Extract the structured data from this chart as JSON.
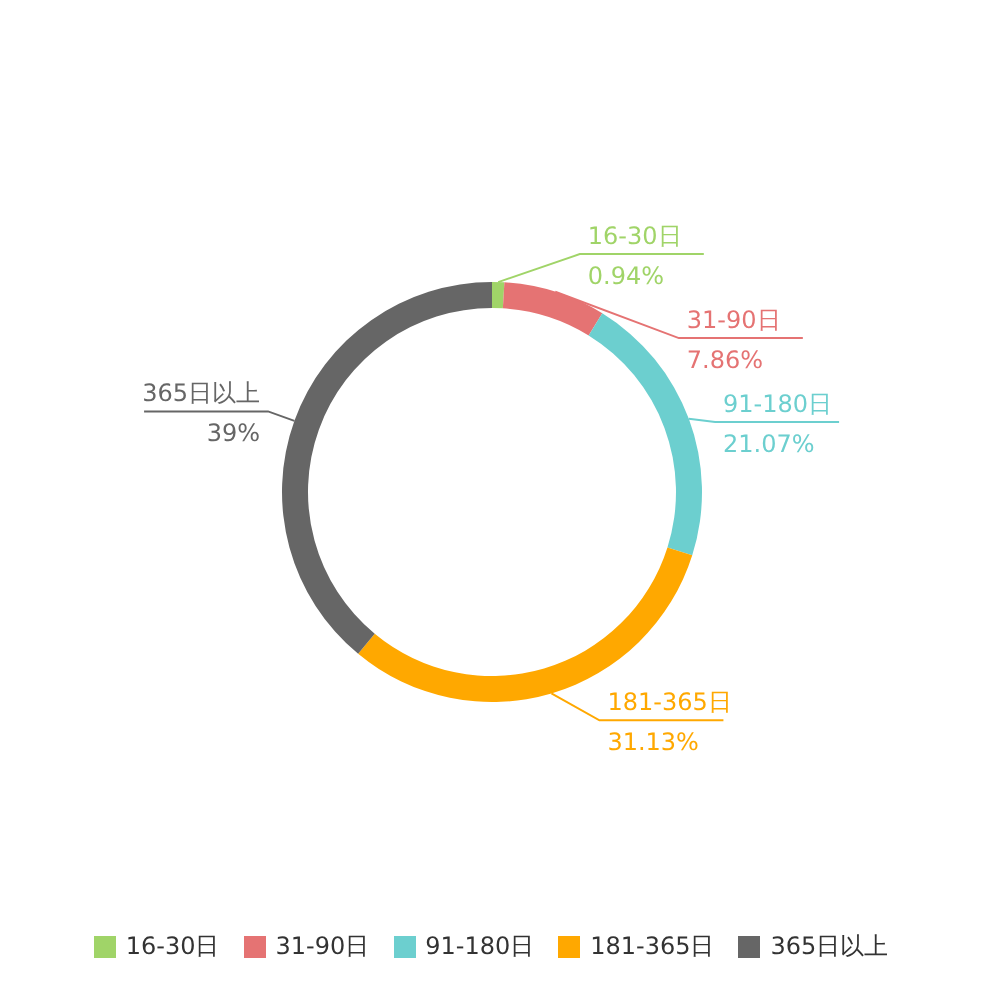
{
  "chart_data": {
    "type": "donut",
    "categories": [
      "16-30日",
      "31-90日",
      "91-180日",
      "181-365日",
      "365日以上"
    ],
    "values": [
      0.94,
      7.86,
      21.07,
      31.13,
      39
    ],
    "colors": [
      "#a0d468",
      "#e57373",
      "#6ccfcf",
      "#ffa800",
      "#666666"
    ],
    "value_labels": [
      "0.94%",
      "7.86%",
      "21.07%",
      "31.13%",
      "39%"
    ],
    "legend": "bottom"
  }
}
